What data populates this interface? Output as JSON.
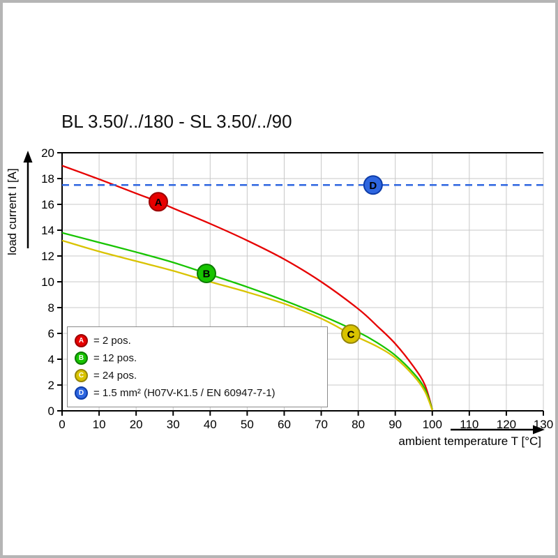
{
  "chart_data": {
    "type": "line",
    "title": "BL 3.50/../180 - SL 3.50/../90",
    "xlabel": "ambient temperature T [°C]",
    "ylabel": "load current I [A]",
    "xlim": [
      0,
      130
    ],
    "ylim": [
      0,
      20
    ],
    "xticks": [
      0,
      10,
      20,
      30,
      40,
      50,
      60,
      70,
      80,
      90,
      100,
      110,
      120,
      130
    ],
    "yticks": [
      0,
      2,
      4,
      6,
      8,
      10,
      12,
      14,
      16,
      18,
      20
    ],
    "grid": true,
    "grid_color": "#c8c8c8",
    "legend_position": "bottom-left",
    "series": [
      {
        "id": "A",
        "legend": "= 2 pos.",
        "style": "solid",
        "color": "#e60000",
        "edge_color": "#9b0000",
        "points": [
          [
            0,
            19.0
          ],
          [
            10,
            17.95
          ],
          [
            20,
            16.85
          ],
          [
            26,
            16.2
          ],
          [
            30,
            15.7
          ],
          [
            40,
            14.5
          ],
          [
            50,
            13.2
          ],
          [
            60,
            11.75
          ],
          [
            70,
            10.0
          ],
          [
            80,
            7.9
          ],
          [
            85,
            6.6
          ],
          [
            90,
            5.2
          ],
          [
            95,
            3.4
          ],
          [
            98,
            2.0
          ],
          [
            100,
            0.1
          ]
        ],
        "marker_at": [
          26,
          16.2
        ]
      },
      {
        "id": "B",
        "legend": "= 12 pos.",
        "style": "solid",
        "color": "#17c400",
        "edge_color": "#0c7a00",
        "points": [
          [
            0,
            13.8
          ],
          [
            10,
            13.05
          ],
          [
            20,
            12.3
          ],
          [
            30,
            11.5
          ],
          [
            39,
            10.65
          ],
          [
            50,
            9.6
          ],
          [
            60,
            8.55
          ],
          [
            70,
            7.4
          ],
          [
            80,
            6.1
          ],
          [
            85,
            5.3
          ],
          [
            90,
            4.3
          ],
          [
            95,
            2.9
          ],
          [
            98,
            1.7
          ],
          [
            100,
            0.1
          ]
        ],
        "marker_at": [
          39,
          10.65
        ]
      },
      {
        "id": "C",
        "legend": "= 24 pos.",
        "style": "solid",
        "color": "#d9c300",
        "edge_color": "#94850a",
        "points": [
          [
            0,
            13.2
          ],
          [
            10,
            12.35
          ],
          [
            20,
            11.6
          ],
          [
            30,
            10.85
          ],
          [
            40,
            10.0
          ],
          [
            50,
            9.2
          ],
          [
            60,
            8.3
          ],
          [
            70,
            7.15
          ],
          [
            78,
            5.95
          ],
          [
            85,
            5.0
          ],
          [
            90,
            4.1
          ],
          [
            95,
            2.7
          ],
          [
            98,
            1.5
          ],
          [
            100,
            0.05
          ]
        ],
        "marker_at": [
          78,
          5.95
        ]
      },
      {
        "id": "D",
        "legend": "= 1.5 mm² (H07V-K1.5 / EN 60947-7-1)",
        "style": "dashed",
        "color": "#2e66e0",
        "edge_color": "#0d3ca8",
        "hline": 17.5,
        "marker_at": [
          84,
          17.5
        ]
      }
    ]
  }
}
